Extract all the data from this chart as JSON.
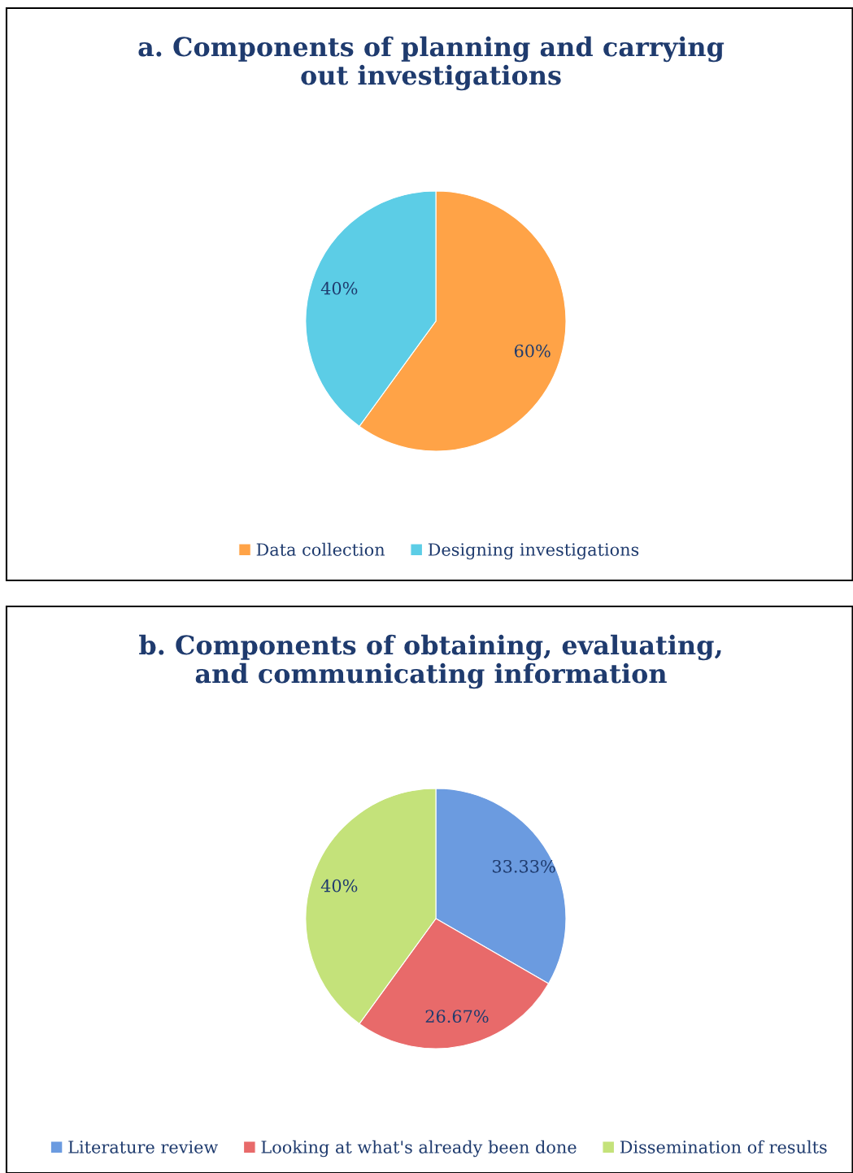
{
  "chart_data": [
    {
      "type": "pie",
      "title": "a. Components of planning and carrying\nout investigations",
      "categories": [
        "Data collection",
        "Designing investigations"
      ],
      "values": [
        60,
        40
      ],
      "value_labels": [
        "60%",
        "40%"
      ],
      "colors": [
        "#ffa347",
        "#5ccde6"
      ],
      "legend": "bottom"
    },
    {
      "type": "pie",
      "title": "b. Components of obtaining, evaluating,\nand communicating information",
      "categories": [
        "Literature review",
        "Looking at what's already been done",
        "Dissemination of results"
      ],
      "values": [
        33.33,
        26.67,
        40
      ],
      "value_labels": [
        "33.33%",
        "26.67%",
        "40%"
      ],
      "colors": [
        "#6b9be0",
        "#e86a6a",
        "#c4e27a"
      ],
      "legend": "bottom"
    }
  ]
}
